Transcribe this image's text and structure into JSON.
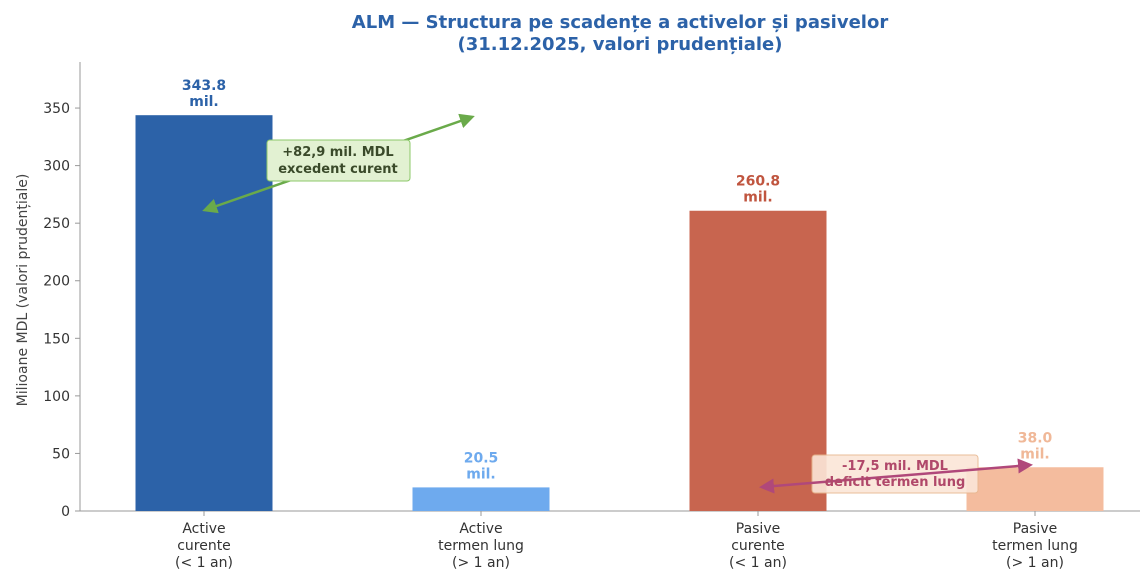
{
  "chart_data": {
    "type": "bar",
    "title": "ALM — Structura pe scadențe a activelor și pasivelor\n(31.12.2025, valori prudențiale)",
    "ylabel": "Milioane MDL (valori prudențiale)",
    "categories": [
      "Active\ncurente\n(< 1 an)",
      "Active\ntermen lung\n(> 1 an)",
      "Pasive\ncurente\n(< 1 an)",
      "Pasive\ntermen lung\n(> 1 an)"
    ],
    "values": [
      343.8,
      20.5,
      260.8,
      38.0
    ],
    "value_labels": [
      "343.8\nmil.",
      "20.5\nmil.",
      "260.8\nmil.",
      "38.0\nmil."
    ],
    "colors": [
      "#2c62a8",
      "#6eaaee",
      "#c8654f",
      "#f4bc9e"
    ],
    "label_colors": [
      "#2c62a8",
      "#6eaaee",
      "#c0553f",
      "#f0b898"
    ],
    "ylim": [
      0,
      390
    ],
    "yticks": [
      0,
      50,
      100,
      150,
      200,
      250,
      300,
      350
    ],
    "annotations": [
      "+82,9 mil. MDL\nexcedent curent",
      "-17,5 mil. MDL\ndeficit termen lung"
    ]
  }
}
